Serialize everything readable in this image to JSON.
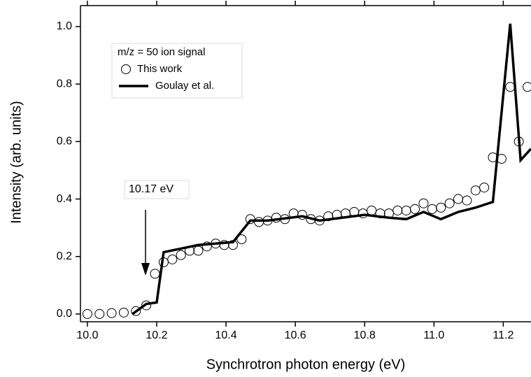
{
  "chart_data": {
    "type": "scatter",
    "x_label": "Synchrotron photon energy (eV)",
    "y_label": "Intensity (arb. units)",
    "legend_title": "m/z = 50 ion signal",
    "annotation": "10.17 eV",
    "xlim": [
      9.98,
      11.28
    ],
    "ylim": [
      -0.027,
      1.073
    ],
    "xticks": [
      {
        "value": 10.0,
        "label": "10.0"
      },
      10.2,
      10.4,
      10.6,
      10.8,
      {
        "value": 11.0,
        "label": "11.0"
      },
      11.2
    ],
    "yticks": [
      {
        "value": 0,
        "label": "0.0"
      },
      0.2,
      0.4,
      0.6,
      0.8,
      {
        "value": 1,
        "label": "1.0"
      }
    ],
    "series": [
      {
        "name": "This work",
        "type": "scatter",
        "color": "#000000",
        "x": [
          10.0,
          10.035,
          10.07,
          10.105,
          10.14,
          10.17,
          10.195,
          10.22,
          10.245,
          10.27,
          10.295,
          10.32,
          10.345,
          10.37,
          10.395,
          10.42,
          10.445,
          10.47,
          10.495,
          10.52,
          10.545,
          10.57,
          10.595,
          10.62,
          10.645,
          10.67,
          10.695,
          10.72,
          10.745,
          10.77,
          10.795,
          10.82,
          10.845,
          10.87,
          10.895,
          10.92,
          10.945,
          10.97,
          10.995,
          11.02,
          11.045,
          11.07,
          11.095,
          11.12,
          11.145,
          11.17,
          11.195,
          11.22,
          11.245,
          11.27
        ],
        "values": [
          0.0,
          0.0,
          0.003,
          0.005,
          0.01,
          0.03,
          0.14,
          0.18,
          0.19,
          0.205,
          0.22,
          0.22,
          0.235,
          0.245,
          0.24,
          0.24,
          0.26,
          0.33,
          0.32,
          0.325,
          0.335,
          0.33,
          0.35,
          0.345,
          0.33,
          0.325,
          0.34,
          0.345,
          0.35,
          0.355,
          0.35,
          0.36,
          0.35,
          0.35,
          0.36,
          0.36,
          0.365,
          0.385,
          0.365,
          0.37,
          0.385,
          0.4,
          0.395,
          0.43,
          0.44,
          0.545,
          0.54,
          0.79,
          0.6,
          0.79
        ]
      },
      {
        "name": "Goulay et al.",
        "type": "line",
        "color": "#000000",
        "x": [
          10.13,
          10.17,
          10.2,
          10.22,
          10.32,
          10.42,
          10.47,
          10.52,
          10.62,
          10.67,
          10.8,
          10.87,
          10.92,
          10.97,
          11.02,
          11.07,
          11.12,
          11.17,
          11.22,
          11.25,
          11.28
        ],
        "values": [
          0.0,
          0.035,
          0.04,
          0.215,
          0.24,
          0.25,
          0.325,
          0.325,
          0.34,
          0.325,
          0.345,
          0.335,
          0.33,
          0.355,
          0.33,
          0.355,
          0.37,
          0.39,
          1.01,
          0.535,
          0.575
        ]
      }
    ]
  }
}
